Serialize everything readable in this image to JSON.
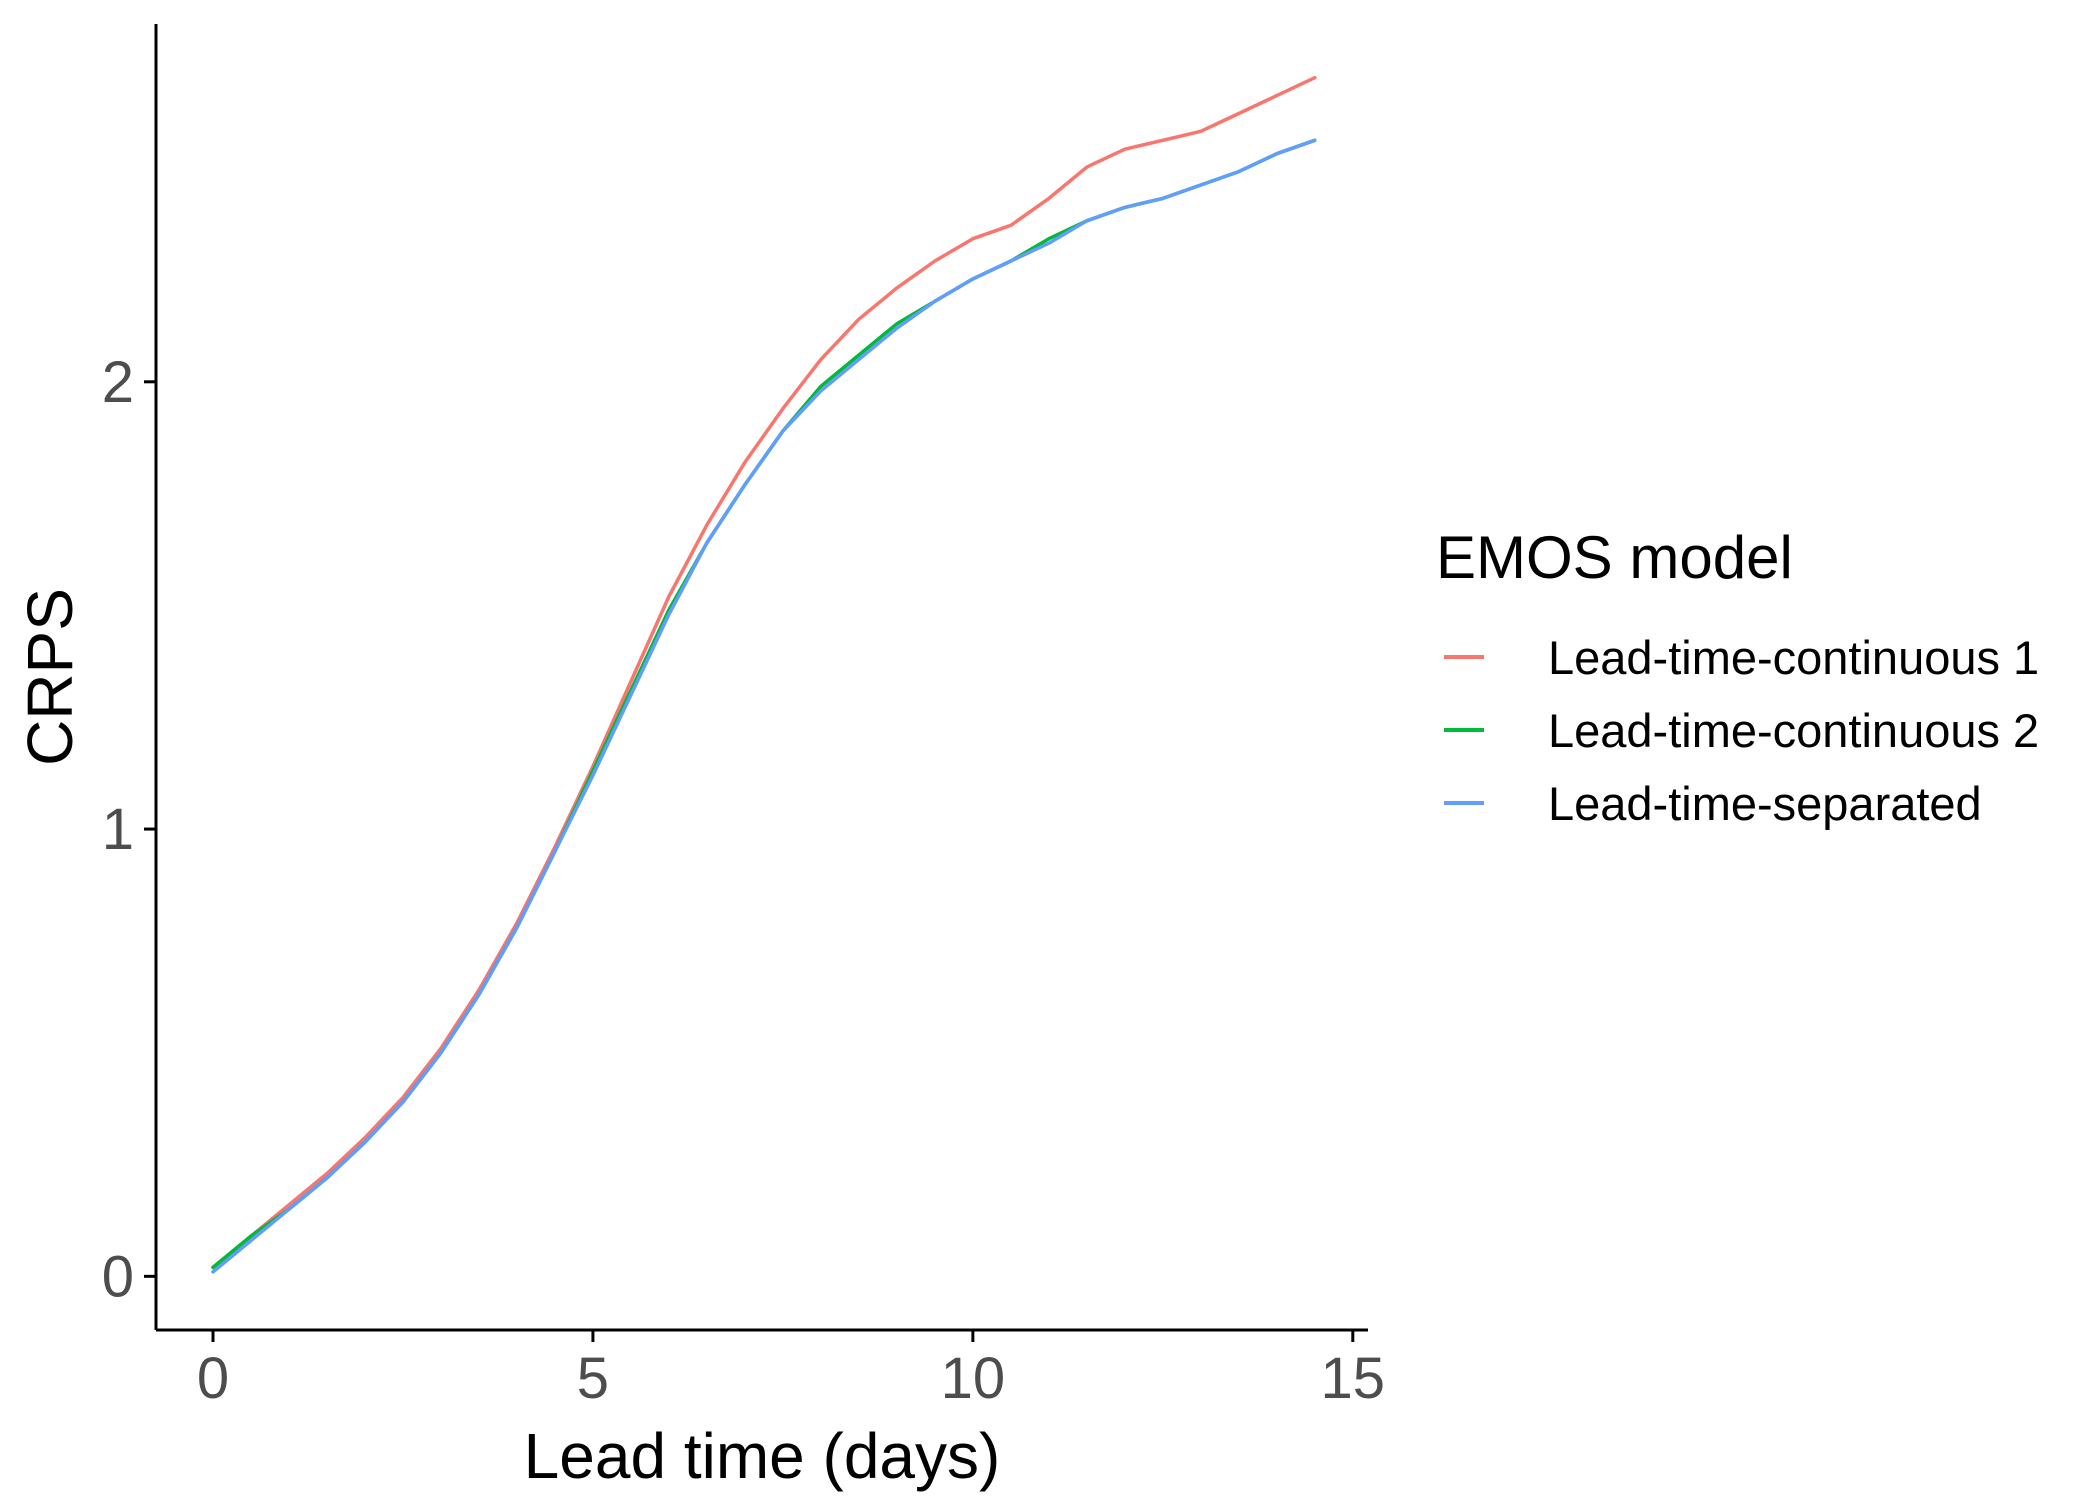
{
  "chart_data": {
    "type": "line",
    "xlabel": "Lead time (days)",
    "ylabel": "CRPS",
    "xlim": [
      -0.75,
      15.2
    ],
    "ylim": [
      -0.12,
      2.8
    ],
    "xticks": [
      0,
      5,
      10,
      15
    ],
    "yticks": [
      0,
      1,
      2
    ],
    "grid": false,
    "legend": {
      "title": "EMOS model",
      "placement": "right"
    },
    "x": [
      0,
      0.5,
      1,
      1.5,
      2,
      2.5,
      3,
      3.5,
      4,
      4.5,
      5,
      5.5,
      6,
      6.5,
      7,
      7.5,
      8,
      8.5,
      9,
      9.5,
      10,
      10.5,
      11,
      11.5,
      12,
      12.5,
      13,
      13.5,
      14,
      14.5
    ],
    "series": [
      {
        "name": "Lead-time-continuous 1",
        "color": "#F8766D",
        "values": [
          0.02,
          0.09,
          0.16,
          0.23,
          0.31,
          0.4,
          0.51,
          0.64,
          0.79,
          0.96,
          1.14,
          1.33,
          1.52,
          1.68,
          1.82,
          1.94,
          2.05,
          2.14,
          2.21,
          2.27,
          2.32,
          2.35,
          2.41,
          2.48,
          2.52,
          2.54,
          2.56,
          2.6,
          2.64,
          2.68
        ]
      },
      {
        "name": "Lead-time-continuous 2",
        "color": "#00BA38",
        "values": [
          0.02,
          0.09,
          0.15,
          0.22,
          0.3,
          0.39,
          0.5,
          0.63,
          0.78,
          0.95,
          1.13,
          1.31,
          1.49,
          1.64,
          1.77,
          1.89,
          1.99,
          2.06,
          2.13,
          2.18,
          2.23,
          2.27,
          2.32,
          2.36,
          2.39,
          2.41,
          2.44,
          2.47,
          2.51,
          2.54
        ]
      },
      {
        "name": "Lead-time-separated",
        "color": "#619CFF",
        "values": [
          0.01,
          0.08,
          0.15,
          0.22,
          0.3,
          0.39,
          0.5,
          0.63,
          0.78,
          0.95,
          1.12,
          1.3,
          1.48,
          1.64,
          1.77,
          1.89,
          1.98,
          2.05,
          2.12,
          2.18,
          2.23,
          2.27,
          2.31,
          2.36,
          2.39,
          2.41,
          2.44,
          2.47,
          2.51,
          2.54
        ]
      }
    ]
  }
}
